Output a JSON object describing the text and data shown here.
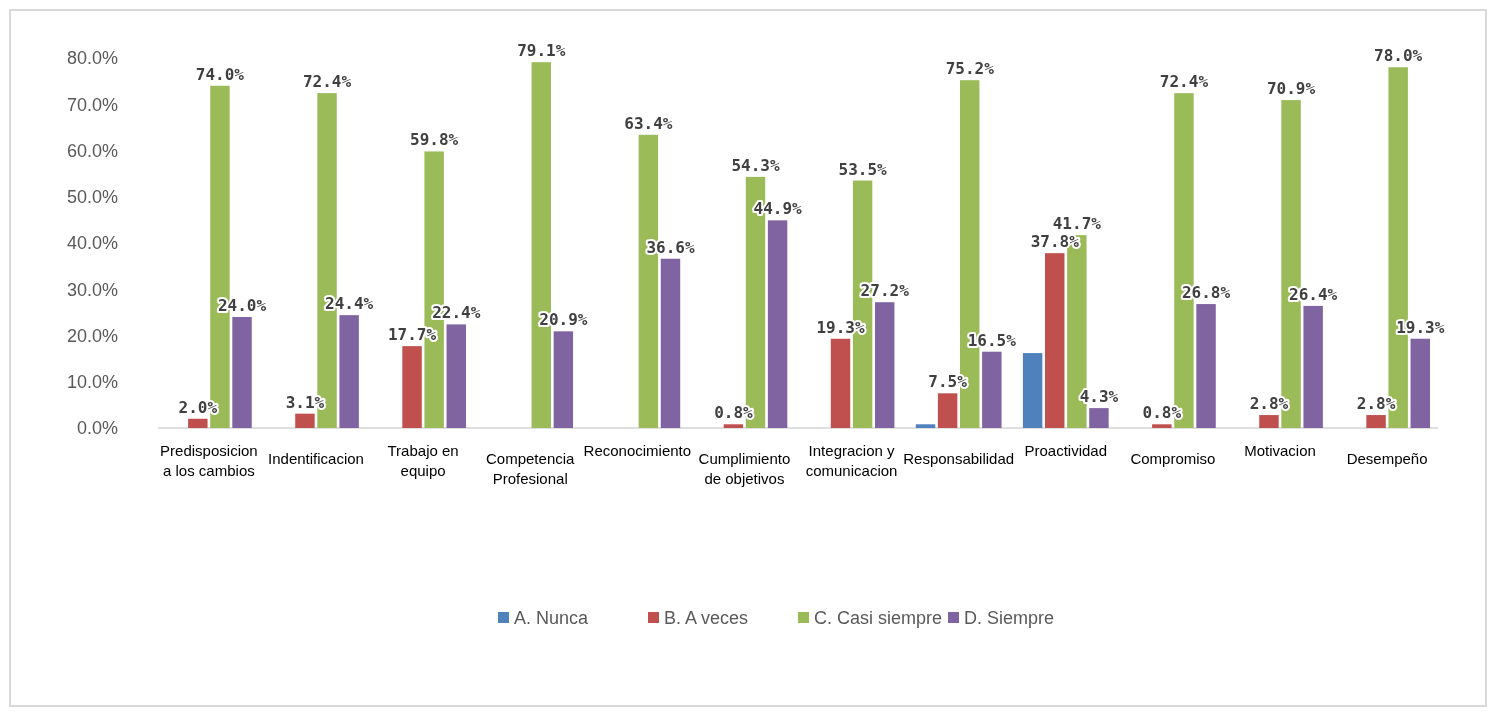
{
  "chart_data": {
    "type": "bar",
    "categories": [
      "Predisposicion a los cambios",
      "Indentificacion",
      "Trabajo en equipo",
      "Competencia Profesional",
      "Reconocimiento",
      "Cumplimiento de objetivos",
      "Integracion y comunicacion",
      "Responsabilidad",
      "Proactividad",
      "Compromiso",
      "Motivacion",
      "Desempeño"
    ],
    "series": [
      {
        "name": "A. Nunca",
        "color": "#4f81bd",
        "values": [
          0,
          0,
          0,
          0,
          0,
          0,
          0,
          0.8,
          16.2,
          0,
          0,
          0
        ],
        "value_labels": [
          null,
          null,
          null,
          null,
          null,
          null,
          null,
          null,
          null,
          null,
          null,
          null
        ]
      },
      {
        "name": "B. A veces",
        "color": "#c0504d",
        "values": [
          2.0,
          3.1,
          17.7,
          0,
          0,
          0.8,
          19.3,
          7.5,
          37.8,
          0.8,
          2.8,
          2.8
        ],
        "value_labels": [
          "2.0%",
          "3.1%",
          "17.7%",
          null,
          null,
          "0.8%",
          "19.3%",
          "7.5%",
          "37.8%",
          "0.8%",
          "2.8%",
          "2.8%"
        ]
      },
      {
        "name": "C. Casi siempre",
        "color": "#9bbb59",
        "values": [
          74.0,
          72.4,
          59.8,
          79.1,
          63.4,
          54.3,
          53.5,
          75.2,
          41.7,
          72.4,
          70.9,
          78.0
        ],
        "value_labels": [
          "74.0%",
          "72.4%",
          "59.8%",
          "79.1%",
          "63.4%",
          "54.3%",
          "53.5%",
          "75.2%",
          "41.7%",
          "72.4%",
          "70.9%",
          "78.0%"
        ]
      },
      {
        "name": "D. Siempre",
        "color": "#8064a2",
        "values": [
          24.0,
          24.4,
          22.4,
          20.9,
          36.6,
          44.9,
          27.2,
          16.5,
          4.3,
          26.8,
          26.4,
          19.3
        ],
        "value_labels": [
          "24.0%",
          "24.4%",
          "22.4%",
          "20.9%",
          "36.6%",
          "44.9%",
          "27.2%",
          "16.5%",
          "4.3%",
          "26.8%",
          "26.4%",
          "19.3%"
        ]
      }
    ],
    "ylim": [
      0,
      80
    ],
    "yticks": [
      {
        "value": 0,
        "label": "0.0%"
      },
      {
        "value": 10,
        "label": "10.0%"
      },
      {
        "value": 20,
        "label": "20.0%"
      },
      {
        "value": 30,
        "label": "30.0%"
      },
      {
        "value": 40,
        "label": "40.0%"
      },
      {
        "value": 50,
        "label": "50.0%"
      },
      {
        "value": 60,
        "label": "60.0%"
      },
      {
        "value": 70,
        "label": "70.0%"
      },
      {
        "value": 80,
        "label": "80.0%"
      }
    ],
    "grid": false,
    "legend": "bottom"
  }
}
